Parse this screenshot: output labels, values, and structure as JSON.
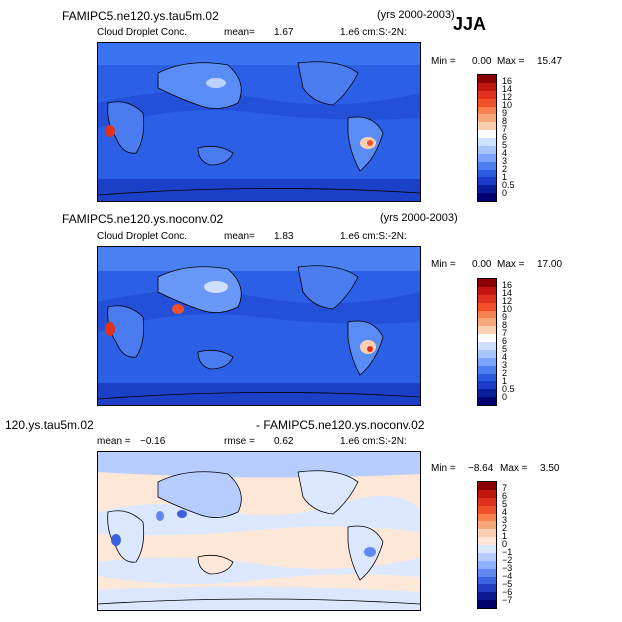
{
  "season": "JJA",
  "panels": [
    {
      "title": "FAMIPC5.ne120.ys.tau5m.02",
      "years": "(yrs 2000-2003)",
      "variable": "Cloud Droplet Conc.",
      "mean_label": "mean=",
      "mean_value": "1.67",
      "units": "1.e6 cm:S:-2N:",
      "min_label": "Min =",
      "min_value": "0.00",
      "max_label": "Max =",
      "max_value": "15.47",
      "colorbar_labels": [
        "16",
        "14",
        "12",
        "10",
        "9",
        "8",
        "7",
        "6",
        "5",
        "4",
        "3",
        "2",
        "1",
        "0.5",
        "0"
      ]
    },
    {
      "title": "FAMIPC5.ne120.ys.noconv.02",
      "years": "(yrs 2000-2003)",
      "variable": "Cloud Droplet Conc.",
      "mean_label": "mean=",
      "mean_value": "1.83",
      "units": "1.e6 cm:S:-2N:",
      "min_label": "Min =",
      "min_value": "0.00",
      "max_label": "Max =",
      "max_value": "17.00",
      "colorbar_labels": [
        "16",
        "14",
        "12",
        "10",
        "9",
        "8",
        "7",
        "6",
        "5",
        "4",
        "3",
        "2",
        "1",
        "0.5",
        "0"
      ]
    },
    {
      "title_left": "120.ys.tau5m.02",
      "title_right": "- FAMIPC5.ne120.ys.noconv.02",
      "mean_label": "mean =",
      "mean_value": "−0.16",
      "rmse_label": "rmse =",
      "rmse_value": "0.62",
      "units": "1.e6 cm:S:-2N:",
      "min_label": "Min =",
      "min_value": "−8.64",
      "max_label": "Max =",
      "max_value": "3.50",
      "colorbar_labels": [
        "7",
        "6",
        "5",
        "4",
        "3",
        "2",
        "1",
        "0",
        "−1",
        "−2",
        "−3",
        "−4",
        "−5",
        "−6",
        "−7"
      ]
    }
  ],
  "colors": {
    "abs_scale": [
      "#8b0000",
      "#c0160e",
      "#e0301e",
      "#f0502a",
      "#f58050",
      "#f8a878",
      "#fbd0b0",
      "#ffffff",
      "#d0e0ff",
      "#a8c4ff",
      "#7aa4ff",
      "#4c7ef0",
      "#2a5ae0",
      "#1a3cc8",
      "#0a1e9a",
      "#000070"
    ],
    "diff_scale": [
      "#8b0000",
      "#c0160e",
      "#e0301e",
      "#f0502a",
      "#f58050",
      "#f8a878",
      "#fbd0b0",
      "#ffe8d8",
      "#dce8ff",
      "#b8cdff",
      "#8eb0ff",
      "#6088f0",
      "#3a62e0",
      "#1e3cc0",
      "#0a1a90",
      "#00006a"
    ]
  }
}
